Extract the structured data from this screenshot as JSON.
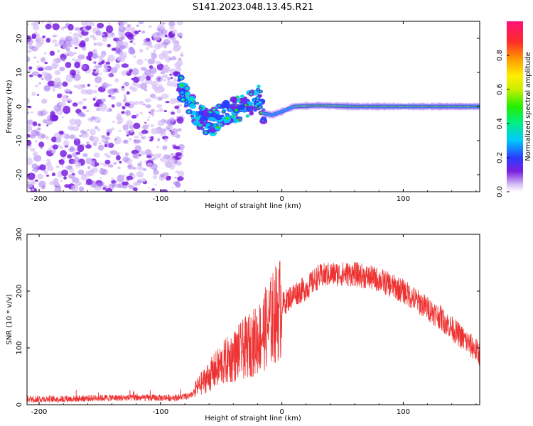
{
  "title": "S141.2023.048.13.45.R21",
  "colors": {
    "snr_line": "#ee3333",
    "noise_purple": "#7a1fe0",
    "noise_light": "#d9c2f7",
    "frame": "#000000"
  },
  "chart_data": [
    {
      "type": "heatmap",
      "xlabel": "Height of straight line (km)",
      "ylabel": "Frequency (Hz)",
      "xlim": [
        -210,
        163
      ],
      "ylim": [
        -25,
        25
      ],
      "x_ticks": [
        -200,
        -100,
        0,
        100
      ],
      "y_ticks": [
        -20,
        -10,
        0,
        10,
        20
      ],
      "colorbar": {
        "label": "Normalized spectral amplitude",
        "range": [
          0,
          1
        ],
        "ticks": [
          0.0,
          0.2,
          0.4,
          0.6,
          0.8
        ]
      },
      "signal_track": [
        {
          "x": -210,
          "y": null
        },
        {
          "x": -82,
          "y": null
        },
        {
          "x": -85,
          "y": 7
        },
        {
          "x": -75,
          "y": 0
        },
        {
          "x": -68,
          "y": -3
        },
        {
          "x": -60,
          "y": -5
        },
        {
          "x": -50,
          "y": -3
        },
        {
          "x": -40,
          "y": -1
        },
        {
          "x": -30,
          "y": 0
        },
        {
          "x": -18,
          "y": 3
        },
        {
          "x": -15,
          "y": -2
        },
        {
          "x": -8,
          "y": -2.5
        },
        {
          "x": 0,
          "y": -1.5
        },
        {
          "x": 10,
          "y": 0
        },
        {
          "x": 30,
          "y": 0.3
        },
        {
          "x": 60,
          "y": 0
        },
        {
          "x": 100,
          "y": 0
        },
        {
          "x": 163,
          "y": 0
        }
      ]
    },
    {
      "type": "line",
      "xlabel": "Height of straight line (km)",
      "ylabel": "SNR (10 * v/v)",
      "xlim": [
        -210,
        163
      ],
      "ylim": [
        0,
        300
      ],
      "x_ticks": [
        -200,
        -100,
        0,
        100
      ],
      "y_ticks": [
        0,
        100,
        200,
        300
      ],
      "series": [
        {
          "x": [
            -210,
            -180,
            -150,
            -120,
            -90,
            -75,
            -70,
            -60,
            -50,
            -40,
            -30,
            -20,
            -10,
            0,
            10,
            20,
            30,
            40,
            50,
            60,
            70,
            80,
            90,
            100,
            110,
            120,
            130,
            140,
            150,
            163
          ],
          "y": [
            10,
            10,
            12,
            12,
            12,
            15,
            30,
            50,
            70,
            85,
            100,
            115,
            145,
            175,
            195,
            205,
            225,
            230,
            230,
            230,
            225,
            220,
            210,
            200,
            185,
            170,
            155,
            135,
            115,
            90
          ]
        }
      ]
    }
  ]
}
